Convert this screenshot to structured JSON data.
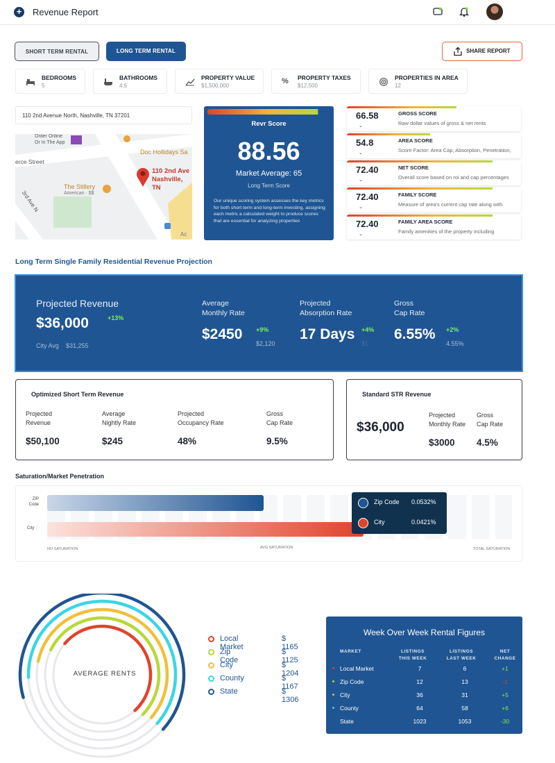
{
  "header": {
    "title": "Revenue Report"
  },
  "toggle": {
    "short_label": "SHORT TERM RENTAL",
    "long_label": "LONG TERM RENTAL",
    "share_label": "SHARE REPORT"
  },
  "stats": [
    {
      "label": "BEDROOMS",
      "value": "5"
    },
    {
      "label": "BATHROOMS",
      "value": "4.5"
    },
    {
      "label": "PROPERTY VALUE",
      "value": "$1,500,000"
    },
    {
      "label": "PROPERTY TAXES",
      "value": "$12,500"
    },
    {
      "label": "PROPERTIES IN AREA",
      "value": "12"
    }
  ],
  "address": "110 2nd Avenue North, Nashville, TN 37201",
  "map": {
    "labels": {
      "order": "Order Online",
      "order2": "Or In The App",
      "doc": "Doc Hollidays Sa",
      "street": "erce Street",
      "pin1": "110 2nd Ave",
      "pin2": "Nashville, TN",
      "stillery": "The Stillery",
      "stillery2": "American · $$",
      "ave": "3rd Ave N",
      "ac": "Ac"
    }
  },
  "revr": {
    "title": "Revr Score",
    "score": "88.56",
    "market": "Market Average: 65",
    "sub": "Long Term Score",
    "desc": "Our unique scoring system assesses the key metrics for both short-term and long-term investing, assigning each metric a calculated weight to produce scores that are essential for analyzing properties"
  },
  "scores": [
    {
      "num": "66.58",
      "label": "GROSS SCORE",
      "desc": "Raw dollar values of gross & net rents"
    },
    {
      "num": "54.8",
      "label": "AREA SCORE",
      "desc": "Score Factor: Area Cap, Absorption, Penetration, and Size"
    },
    {
      "num": "72.40",
      "label": "NET SCORE",
      "desc": "Overall score based on roi and cap percentages"
    },
    {
      "num": "72.40",
      "label": "FAMILY SCORE",
      "desc": "Measure of area's current cap rate along with family data"
    },
    {
      "num": "72.40",
      "label": "FAMILY AREA SCORE",
      "desc": "Family amenities of the property including"
    }
  ],
  "projection": {
    "section_title": "Long Term Single Family Residential Revenue Projection",
    "revenue_label": "Projected Revenue",
    "revenue": "$36,000",
    "revenue_change": "+13%",
    "city_avg_label": "City Avg",
    "city_avg": "$31,255",
    "monthly_label1": "Average",
    "monthly_label2": "Monthly Rate",
    "monthly": "$2450",
    "monthly_change": "+9%",
    "monthly_sub": "$2,120",
    "absorb_label1": "Projected",
    "absorb_label2": "Absorption Rate",
    "absorb": "17 Days",
    "absorb_change": "+4%",
    "absorb_sub": "$1",
    "cap_label1": "Gross",
    "cap_label2": "Cap Rate",
    "cap": "6.55%",
    "cap_change": "+2%",
    "cap_sub": "4.55%"
  },
  "optimized": {
    "title": "Optimized Short Term Revenue",
    "items": [
      {
        "l1": "Projected",
        "l2": "Revenue",
        "v": "$50,100"
      },
      {
        "l1": "Average",
        "l2": "Nightly Rate",
        "v": "$245"
      },
      {
        "l1": "Projected",
        "l2": "Occupancy Rate",
        "v": "48%"
      },
      {
        "l1": "Gross",
        "l2": "Cap Rate",
        "v": "9.5%"
      }
    ]
  },
  "standard": {
    "title": "Standard STR Revenue",
    "revenue": "$36,000",
    "m1": "Projected",
    "m2": "Monthly Rate",
    "mv": "$3000",
    "c1": "Gross",
    "c2": "Cap Rate",
    "cv": "4.5%"
  },
  "saturation": {
    "title": "Saturation/Market Penetration",
    "zip_label1": "ZIP",
    "zip_label2": "Code",
    "city_label": "City",
    "zip_level": 0.465,
    "city_level": 0.68,
    "axis": [
      "NO SATURATION",
      "AVG SATURATION",
      "TOTAL SATURATION"
    ],
    "tooltip": [
      {
        "name": "Zip Code",
        "value": "0.0532%",
        "color": "#1f5592"
      },
      {
        "name": "City",
        "value": "0.0421%",
        "color": "#e0442b"
      }
    ]
  },
  "rents": {
    "center_label": "AVERAGE RENTS",
    "items": [
      {
        "name": "Local Market",
        "value": "$ 1165",
        "color": "#e0442b",
        "share": 0.52
      },
      {
        "name": "Zip Code",
        "value": "$ 1125",
        "color": "#b8d936",
        "share": 0.55
      },
      {
        "name": "City",
        "value": "$ 1204",
        "color": "#f0c03a",
        "share": 0.58
      },
      {
        "name": "County",
        "value": "$ 1167",
        "color": "#3ad6e6",
        "share": 0.62
      },
      {
        "name": "State",
        "value": "$ 1306",
        "color": "#1f5592",
        "share": 0.66
      }
    ]
  },
  "wow": {
    "title": "Week Over Week Rental Figures",
    "headers": [
      "MARKET",
      "LISTINGS THIS WEEK",
      "LISTINGS LAST WEEK",
      "NET CHANGE"
    ],
    "rows": [
      {
        "m": "Local Market",
        "t": "7",
        "l": "6",
        "n": "+1",
        "dot": "#e0442b",
        "nc": "#7cf05a"
      },
      {
        "m": "Zip Code",
        "t": "12",
        "l": "13",
        "n": "-1",
        "dot": "#b8d936",
        "nc": "#e0442b"
      },
      {
        "m": "City",
        "t": "36",
        "l": "31",
        "n": "+5",
        "dot": "#f0c03a",
        "nc": "#7cf05a"
      },
      {
        "m": "County",
        "t": "64",
        "l": "58",
        "n": "+6",
        "dot": "#3ad6e6",
        "nc": "#7cf05a"
      },
      {
        "m": "State",
        "t": "1023",
        "l": "1053",
        "n": "-30",
        "dot": "#1f5592",
        "nc": "#7cf05a"
      }
    ]
  }
}
